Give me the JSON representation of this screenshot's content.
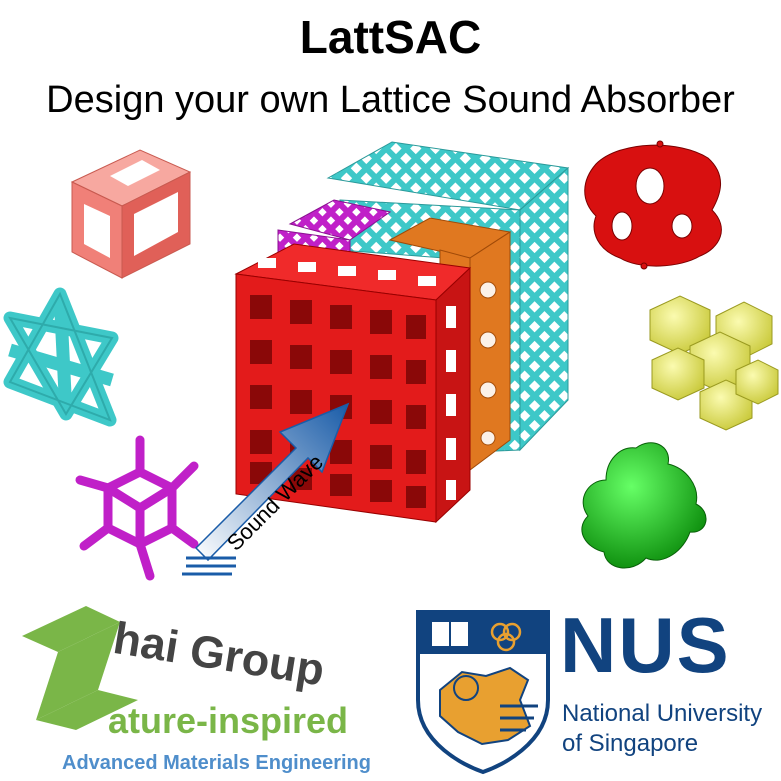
{
  "header": {
    "title": "LattSAC",
    "subtitle": "Design your own Lattice Sound Absorber"
  },
  "illustration": {
    "arrow_label": "Sound Wave",
    "colors": {
      "red": "#e31b1b",
      "cyan": "#3ec8c8",
      "magenta": "#c020c8",
      "orange": "#e07820",
      "yellow": "#e8e860",
      "green": "#18b418",
      "arrow": "#1a5ca8"
    }
  },
  "logos": {
    "zhai": {
      "name": "hai Group",
      "line2": "ature-inspired",
      "line3": "Advanced Materials Engineering"
    },
    "nus": {
      "abbr": "NUS",
      "line1": "National University",
      "line2": "of Singapore"
    }
  }
}
